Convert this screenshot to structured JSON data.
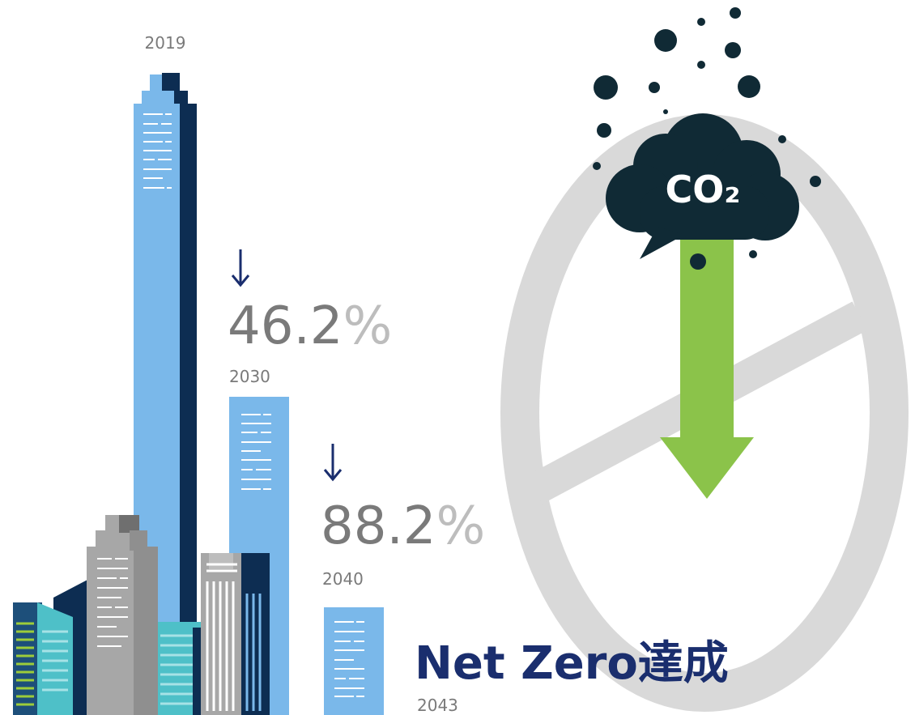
{
  "labels": {
    "year_2019": "2019",
    "reduction_2030": {
      "value": "46.2",
      "unit": "%"
    },
    "year_2030": "2030",
    "reduction_2040": {
      "value": "88.2",
      "unit": "%"
    },
    "year_2040": "2040",
    "net_zero": "Net Zero達成",
    "year_2043": "2043",
    "co2": "CO₂"
  }
}
